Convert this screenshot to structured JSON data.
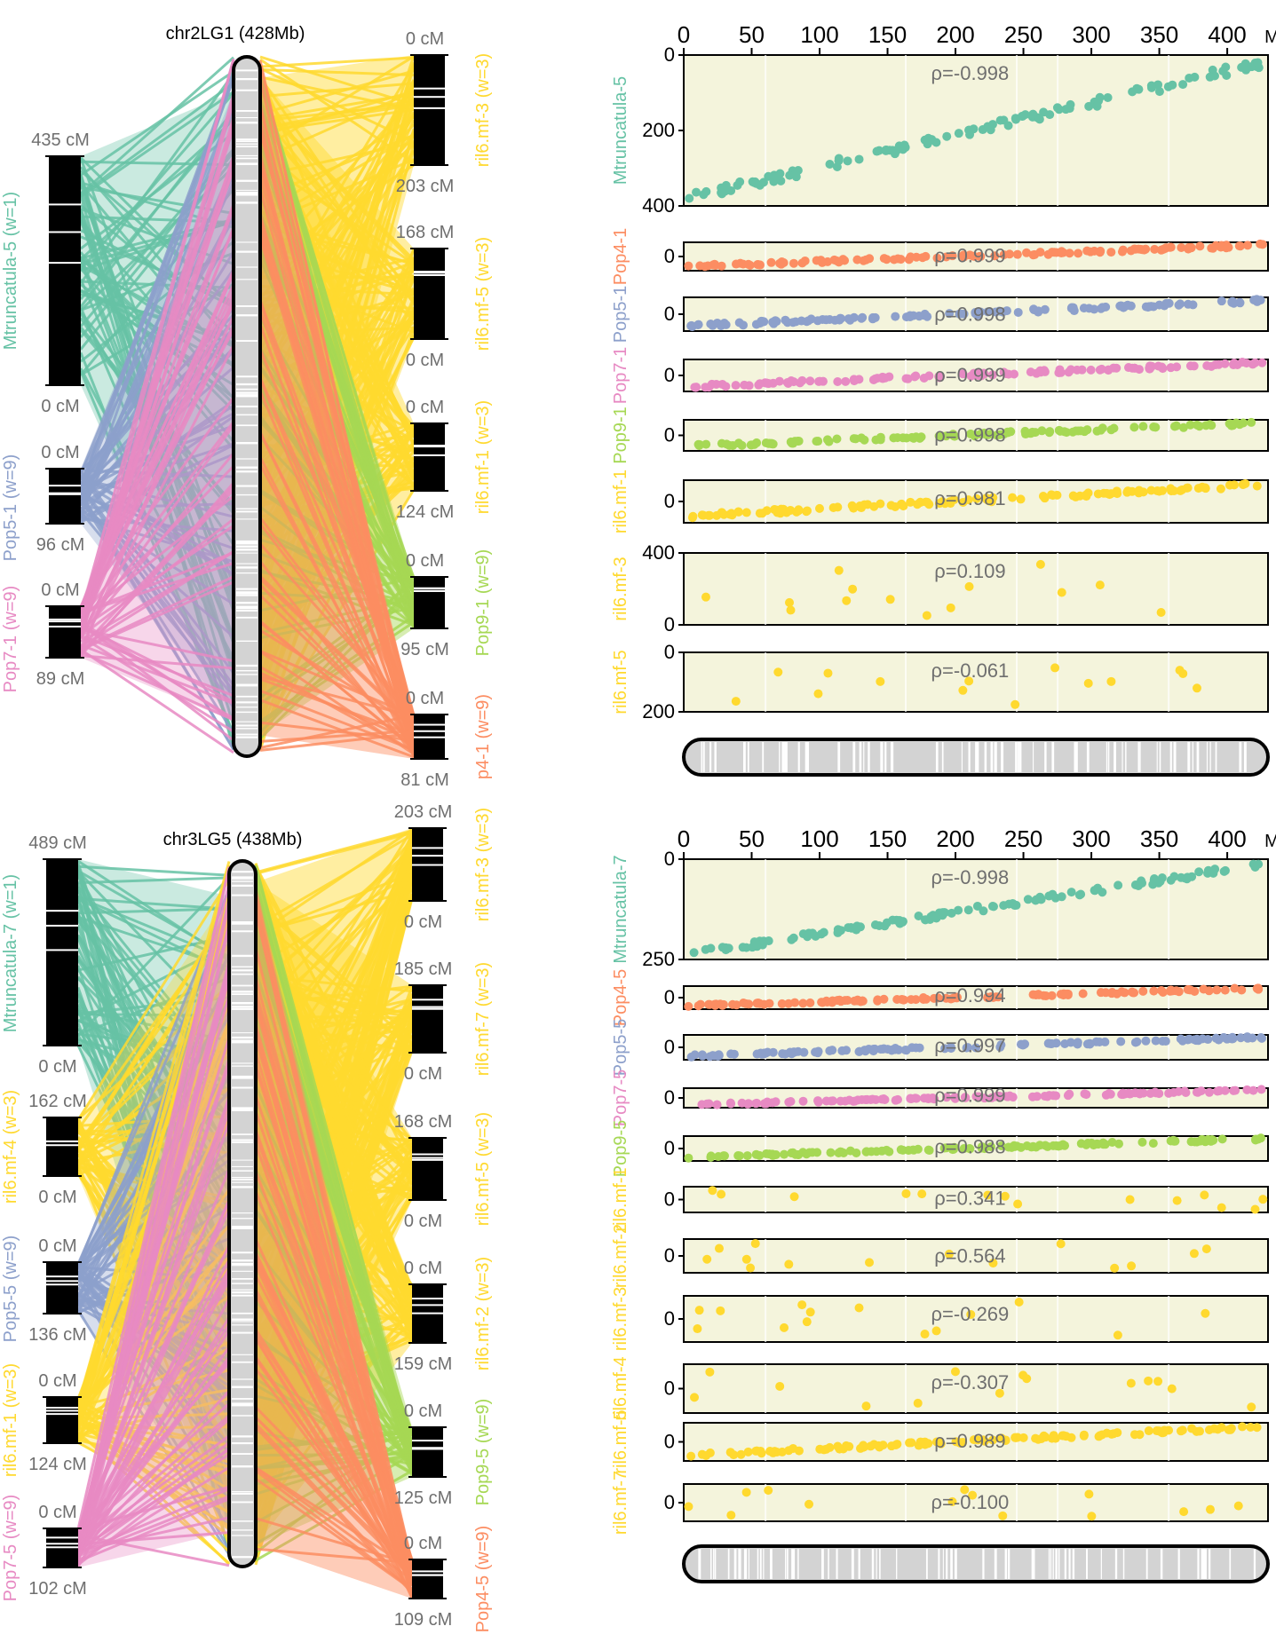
{
  "colors": {
    "Mtruncatula": "#66c2a5",
    "Pop4": "#fc8d62",
    "Pop5": "#8da0cb",
    "Pop7": "#e78ac3",
    "Pop9": "#a6d854",
    "ril6": "#ffd92f",
    "panel_bg": "#f4f4dc",
    "chrom_fill": "#d3d3d3",
    "gray_text": "#6f6f6f"
  },
  "top": {
    "chrom_title": "chr2LG1 (428Mb)",
    "left_maps": [
      {
        "name": "Mtruncatula-5 (w=1)",
        "color": "Mtruncatula",
        "top_label": "435 cM",
        "bottom_label": "0 cM"
      },
      {
        "name": "Pop5-1 (w=9)",
        "color": "Pop5",
        "top_label": "0 cM",
        "bottom_label": "96 cM"
      },
      {
        "name": "Pop7-1 (w=9)",
        "color": "Pop7",
        "top_label": "0 cM",
        "bottom_label": "89 cM"
      }
    ],
    "right_maps": [
      {
        "name": "ril6.mf-3 (w=3)",
        "color": "ril6",
        "top_label": "0 cM",
        "bottom_label": "203 cM"
      },
      {
        "name": "ril6.mf-5 (w=3)",
        "color": "ril6",
        "top_label": "168 cM",
        "bottom_label": "0 cM"
      },
      {
        "name": "ril6.mf-1 (w=3)",
        "color": "ril6",
        "top_label": "0 cM",
        "bottom_label": "124 cM"
      },
      {
        "name": "Pop9-1 (w=9)",
        "color": "Pop9",
        "top_label": "0 cM",
        "bottom_label": "95 cM"
      },
      {
        "name": "p4-1 (w=9)",
        "color": "Pop4",
        "top_label": "0 cM",
        "bottom_label": "81 cM"
      }
    ],
    "x_ticks": [
      "0",
      "50",
      "100",
      "150",
      "200",
      "250",
      "300",
      "350",
      "400"
    ],
    "x_unit": "Mb",
    "panels": [
      {
        "name": "Mtruncatula-5",
        "color": "Mtruncatula",
        "rho": "ρ=-0.998",
        "ticks": [
          "0",
          "200",
          "400"
        ]
      },
      {
        "name": "Pop4-1",
        "color": "Pop4",
        "rho": "ρ=0.999",
        "ticks": [
          "0"
        ]
      },
      {
        "name": "Pop5-1",
        "color": "Pop5",
        "rho": "ρ=0.998",
        "ticks": [
          "0"
        ]
      },
      {
        "name": "Pop7-1",
        "color": "Pop7",
        "rho": "ρ=0.999",
        "ticks": [
          "0"
        ]
      },
      {
        "name": "Pop9-1",
        "color": "Pop9",
        "rho": "ρ=0.998",
        "ticks": [
          "0"
        ]
      },
      {
        "name": "ril6.mf-1",
        "color": "ril6",
        "rho": "ρ=0.981",
        "ticks": [
          "0"
        ]
      },
      {
        "name": "ril6.mf-3",
        "color": "ril6",
        "rho": "ρ=0.109",
        "ticks": [
          "400",
          "0"
        ]
      },
      {
        "name": "ril6.mf-5",
        "color": "ril6",
        "rho": "ρ=-0.061",
        "ticks": [
          "0",
          "200"
        ]
      }
    ]
  },
  "bottom": {
    "chrom_title": "chr3LG5 (438Mb)",
    "left_maps": [
      {
        "name": "Mtruncatula-7 (w=1)",
        "color": "Mtruncatula",
        "top_label": "489 cM",
        "bottom_label": "0 cM"
      },
      {
        "name": "ril6.mf-4 (w=3)",
        "color": "ril6",
        "top_label": "162 cM",
        "bottom_label": "0 cM"
      },
      {
        "name": "Pop5-5 (w=9)",
        "color": "Pop5",
        "top_label": "0 cM",
        "bottom_label": "136 cM"
      },
      {
        "name": "ril6.mf-1 (w=3)",
        "color": "ril6",
        "top_label": "0 cM",
        "bottom_label": "124 cM"
      },
      {
        "name": "Pop7-5 (w=9)",
        "color": "Pop7",
        "top_label": "0 cM",
        "bottom_label": "102 cM"
      }
    ],
    "right_maps": [
      {
        "name": "ril6.mf-3 (w=3)",
        "color": "ril6",
        "top_label": "203 cM",
        "bottom_label": "0 cM"
      },
      {
        "name": "ril6.mf-7 (w=3)",
        "color": "ril6",
        "top_label": "185 cM",
        "bottom_label": "0 cM"
      },
      {
        "name": "ril6.mf-5 (w=3)",
        "color": "ril6",
        "top_label": "168 cM",
        "bottom_label": "0 cM"
      },
      {
        "name": "ril6.mf-2 (w=3)",
        "color": "ril6",
        "top_label": "0 cM",
        "bottom_label": "159 cM"
      },
      {
        "name": "Pop9-5 (w=9)",
        "color": "Pop9",
        "top_label": "0 cM",
        "bottom_label": "125 cM"
      },
      {
        "name": "Pop4-5 (w=9)",
        "color": "Pop4",
        "top_label": "0 cM",
        "bottom_label": "109 cM"
      }
    ],
    "x_ticks": [
      "0",
      "50",
      "100",
      "150",
      "200",
      "250",
      "300",
      "350",
      "400"
    ],
    "x_unit": "Mb",
    "panels": [
      {
        "name": "Mtruncatula-7",
        "color": "Mtruncatula",
        "rho": "ρ=-0.998",
        "ticks": [
          "0",
          "250"
        ]
      },
      {
        "name": "Pop4-5",
        "color": "Pop4",
        "rho": "ρ=0.994",
        "ticks": [
          "0"
        ]
      },
      {
        "name": "Pop5-5",
        "color": "Pop5",
        "rho": "ρ=0.997",
        "ticks": [
          "0"
        ]
      },
      {
        "name": "Pop7-5",
        "color": "Pop7",
        "rho": "ρ=0.999",
        "ticks": [
          "0"
        ]
      },
      {
        "name": "Pop9-5",
        "color": "Pop9",
        "rho": "ρ=0.988",
        "ticks": [
          "0"
        ]
      },
      {
        "name": "ril6.mf-1",
        "color": "ril6",
        "rho": "ρ=0.341",
        "ticks": [
          "0"
        ]
      },
      {
        "name": "ril6.mf-2",
        "color": "ril6",
        "rho": "ρ=0.564",
        "ticks": [
          "0"
        ]
      },
      {
        "name": "ril6.mf-3",
        "color": "ril6",
        "rho": "ρ=-0.269",
        "ticks": [
          "0"
        ]
      },
      {
        "name": "ril6.mf-4",
        "color": "ril6",
        "rho": "ρ=-0.307",
        "ticks": [
          "0"
        ]
      },
      {
        "name": "ril6.mf-5",
        "color": "ril6",
        "rho": "ρ=0.989",
        "ticks": [
          "0"
        ]
      },
      {
        "name": "ril6.mf-7",
        "color": "ril6",
        "rho": "ρ=-0.100",
        "ticks": [
          "0"
        ]
      }
    ]
  }
}
